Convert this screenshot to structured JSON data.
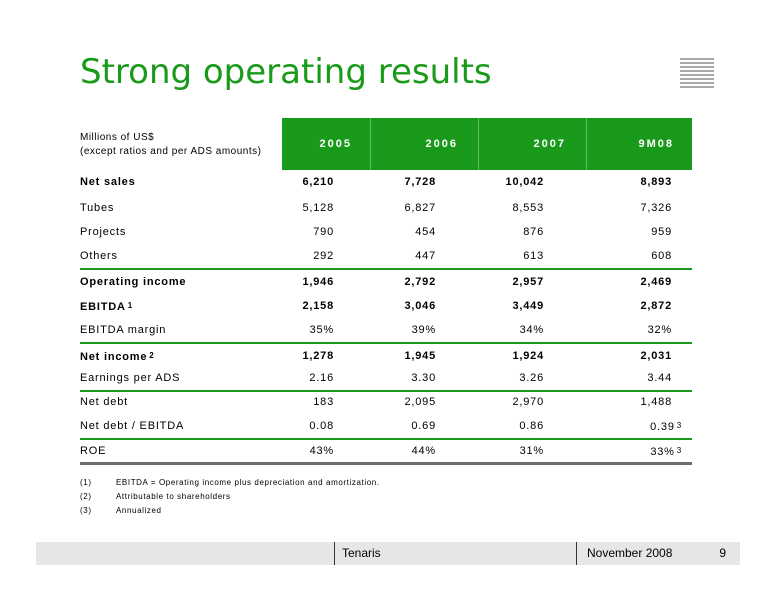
{
  "title": "Strong operating results",
  "units_line1": "Millions of US$",
  "units_line2": "(except ratios and per ADS amounts)",
  "columns": [
    "2005",
    "2006",
    "2007",
    "9M08"
  ],
  "rows": [
    {
      "label": "Net sales",
      "values": [
        "6,210",
        "7,728",
        "10,042",
        "8,893"
      ]
    },
    {
      "label": "Tubes",
      "values": [
        "5,128",
        "6,827",
        "8,553",
        "7,326"
      ]
    },
    {
      "label": "Projects",
      "values": [
        "790",
        "454",
        "876",
        "959"
      ]
    },
    {
      "label": "Others",
      "values": [
        "292",
        "447",
        "613",
        "608"
      ]
    },
    {
      "label": "Operating income",
      "values": [
        "1,946",
        "2,792",
        "2,957",
        "2,469"
      ]
    },
    {
      "label": "EBITDA",
      "sup": "1",
      "values": [
        "2,158",
        "3,046",
        "3,449",
        "2,872"
      ]
    },
    {
      "label": "EBITDA margin",
      "values": [
        "35%",
        "39%",
        "34%",
        "32%"
      ]
    },
    {
      "label": "Net income",
      "sup": "2",
      "values": [
        "1,278",
        "1,945",
        "1,924",
        "2,031"
      ]
    },
    {
      "label": "Earnings per ADS",
      "values": [
        "2.16",
        "3.30",
        "3.26",
        "3.44"
      ]
    },
    {
      "label": "Net debt",
      "values": [
        "183",
        "2,095",
        "2,970",
        "1,488"
      ]
    },
    {
      "label": "Net debt / EBITDA",
      "values": [
        "0.08",
        "0.69",
        "0.86",
        "0.39"
      ],
      "last_sup": "3"
    },
    {
      "label": "ROE",
      "values": [
        "43%",
        "44%",
        "31%",
        "33%"
      ],
      "last_sup": "3"
    }
  ],
  "notes": [
    {
      "num": "(1)",
      "text": "EBITDA = Operating income plus depreciation and amortization."
    },
    {
      "num": "(2)",
      "text": "Attributable to shareholders"
    },
    {
      "num": "(3)",
      "text": "Annualized"
    }
  ],
  "footer": {
    "brand": "Tenaris",
    "date": "November 2008",
    "page": "9"
  },
  "colors": {
    "accent": "#1a9a1a",
    "footer_bg": "#e6e6e6",
    "rule_grey": "#6e6e6e"
  }
}
